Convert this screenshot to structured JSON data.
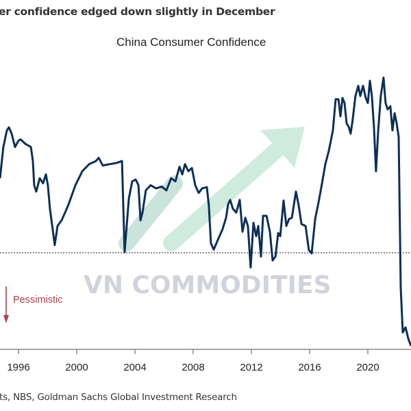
{
  "header": {
    "title": "er confidence edged down slightly in December"
  },
  "footer": {
    "source": "ts, NBS, Goldman Sachs Global Investment Research"
  },
  "annotation": {
    "pessimistic": "Pessimistic",
    "color": "#b0404a"
  },
  "watermark": "VN COMMODITIES",
  "chart_data": {
    "type": "line",
    "title": "China Consumer Confidence",
    "xlabel": "",
    "ylabel": "",
    "x_ticks": [
      "1996",
      "2000",
      "2004",
      "2008",
      "2012",
      "2016",
      "2020"
    ],
    "xlim": [
      1994.7,
      2023.0
    ],
    "reference_line": 100,
    "grid": false,
    "line_color": "#0d2f57",
    "series": [
      {
        "x": [
          1994.73,
          1994.96,
          1995.2,
          1995.34,
          1995.53,
          1995.76,
          1996.0,
          1996.14,
          1996.47,
          1996.85,
          1996.99,
          1997.08,
          1997.22,
          1997.46,
          1997.69,
          1997.88,
          1998.02,
          1998.16,
          1998.35,
          1998.49,
          1998.68,
          1998.96,
          1999.2,
          1999.44,
          1999.91,
          2000.38,
          2000.85,
          2001.32,
          2001.51,
          2001.79,
          2002.26,
          2002.73,
          2003.11,
          2003.29,
          2003.58,
          2003.81,
          2004.05,
          2004.24,
          2004.38,
          2004.52,
          2004.75,
          2005.08,
          2005.46,
          2005.84,
          2006.16,
          2006.49,
          2006.78,
          2007.06,
          2007.25,
          2007.44,
          2007.67,
          2007.91,
          2008.14,
          2008.38,
          2008.61,
          2008.94,
          2009.08,
          2009.22,
          2009.41,
          2009.69,
          2010.02,
          2010.26,
          2010.4,
          2010.54,
          2010.73,
          2010.96,
          2011.2,
          2011.39,
          2011.58,
          2011.76,
          2011.95,
          2012.14,
          2012.33,
          2012.47,
          2012.66,
          2012.8,
          2013.04,
          2013.27,
          2013.46,
          2013.65,
          2013.84,
          2013.98,
          2014.21,
          2014.4,
          2014.59,
          2014.78,
          2015.06,
          2015.25,
          2015.44,
          2015.72,
          2015.95,
          2016.14,
          2016.38,
          2016.61,
          2016.85,
          2017.08,
          2017.32,
          2017.6,
          2017.79,
          2017.98,
          2018.12,
          2018.26,
          2018.4,
          2018.54,
          2018.68,
          2018.82,
          2018.96,
          2019.15,
          2019.34,
          2019.48,
          2019.67,
          2019.86,
          2020.0,
          2020.14,
          2020.28,
          2020.42,
          2020.56,
          2020.71,
          2020.89,
          2021.08,
          2021.22,
          2021.36,
          2021.55,
          2021.69,
          2021.84,
          2021.98,
          2022.12,
          2022.26,
          2022.4,
          2022.59,
          2022.78,
          2022.96
        ],
        "values": [
          111.7,
          116.6,
          119.2,
          119.7,
          118.7,
          116.6,
          117.6,
          117.8,
          117.1,
          116.6,
          114.4,
          110.6,
          109.6,
          111.7,
          110.9,
          112.3,
          110.6,
          106.9,
          103.7,
          101.2,
          104.2,
          105.1,
          106.3,
          107.6,
          110.6,
          112.8,
          113.9,
          114.4,
          114.9,
          113.7,
          113.9,
          114.1,
          114.4,
          100.1,
          108.5,
          111.2,
          111.5,
          110.6,
          105.1,
          106.3,
          109.8,
          110.6,
          110.1,
          110.4,
          109.8,
          111.7,
          111.2,
          113.5,
          112.3,
          113.9,
          112.8,
          113.3,
          110.6,
          109.4,
          110.1,
          110.3,
          107.4,
          101.5,
          100.5,
          102.0,
          103.7,
          105.5,
          107.6,
          108.3,
          106.9,
          106.3,
          108.3,
          103.3,
          105.5,
          104.2,
          97.7,
          104.7,
          102.6,
          104.2,
          99.4,
          105.8,
          105.8,
          103.3,
          98.8,
          99.4,
          103.1,
          102.6,
          108.2,
          104.2,
          105.3,
          105.5,
          109.6,
          107.4,
          104.5,
          104.2,
          100.4,
          99.9,
          105.3,
          107.9,
          110.9,
          113.9,
          116.0,
          119.2,
          124.1,
          124.1,
          121.4,
          124.3,
          123.5,
          120.3,
          119.8,
          118.7,
          120.9,
          124.6,
          126.2,
          124.6,
          126.2,
          124.3,
          123.5,
          127.0,
          124.6,
          119.8,
          112.8,
          119.2,
          124.6,
          127.5,
          123.5,
          122.5,
          123.0,
          119.2,
          121.9,
          120.3,
          118.2,
          94.5,
          87.5,
          88.3,
          86.5,
          85.4
        ]
      }
    ]
  }
}
